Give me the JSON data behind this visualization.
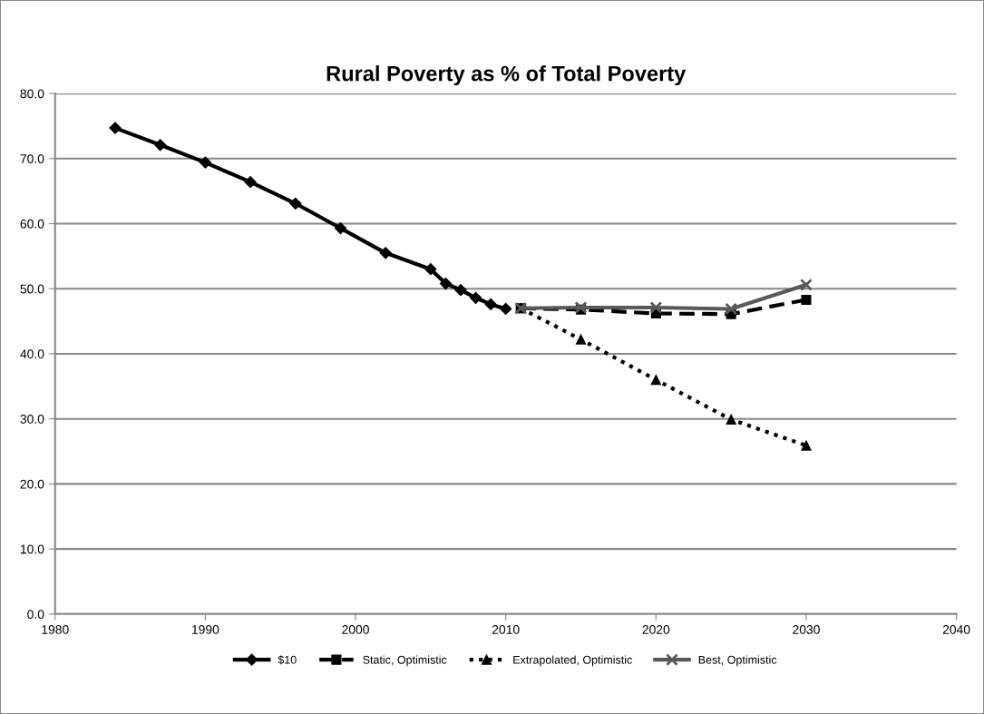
{
  "chart_data": {
    "type": "line",
    "title": "Rural Poverty as % of Total Poverty",
    "series": [
      {
        "name": "$10",
        "color": "#000000",
        "marker": "diamond",
        "line_style": "solid",
        "x": [
          1984,
          1987,
          1990,
          1993,
          1996,
          1999,
          2002,
          2005,
          2006,
          2007,
          2008,
          2009,
          2010
        ],
        "values": [
          74.7,
          72.1,
          69.4,
          66.4,
          63.1,
          59.3,
          55.5,
          53.0,
          50.8,
          49.8,
          48.6,
          47.6,
          46.9
        ]
      },
      {
        "name": "Static, Optimistic",
        "color": "#000000",
        "marker": "square",
        "line_style": "dashed",
        "x": [
          2011,
          2015,
          2020,
          2025,
          2030
        ],
        "values": [
          47.0,
          46.8,
          46.2,
          46.1,
          48.3
        ]
      },
      {
        "name": "Extrapolated, Optimistic",
        "color": "#000000",
        "marker": "triangle",
        "line_style": "dotted",
        "x": [
          2011,
          2015,
          2020,
          2025,
          2030
        ],
        "values": [
          47.0,
          42.2,
          36.0,
          29.9,
          25.9
        ]
      },
      {
        "name": "Best, Optimistic",
        "color": "#595959",
        "marker": "cross",
        "line_style": "solid",
        "x": [
          2011,
          2015,
          2020,
          2025,
          2030
        ],
        "values": [
          47.0,
          47.1,
          47.1,
          46.9,
          50.6
        ]
      }
    ],
    "xlim": [
      1980,
      2040
    ],
    "xticks": [
      1980,
      1990,
      2000,
      2010,
      2020,
      2030,
      2040
    ],
    "ylim": [
      0,
      80
    ],
    "yticks": [
      {
        "value": 0,
        "label": "0.0"
      },
      {
        "value": 10,
        "label": "10.0"
      },
      {
        "value": 20,
        "label": "20.0"
      },
      {
        "value": 30,
        "label": "30.0"
      },
      {
        "value": 40,
        "label": "40.0"
      },
      {
        "value": 50,
        "label": "50.0"
      },
      {
        "value": 60,
        "label": "60.0"
      },
      {
        "value": 70,
        "label": "70.0"
      },
      {
        "value": 80,
        "label": "80.0"
      }
    ],
    "grid": "y",
    "legend": "bottom"
  }
}
